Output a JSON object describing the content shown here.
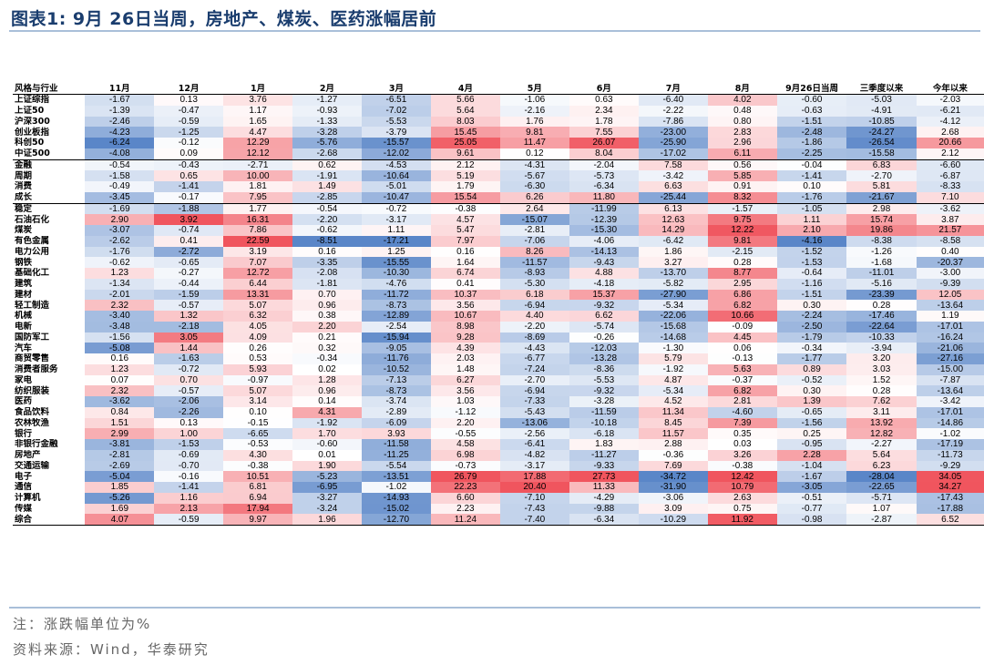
{
  "title": "图表1:  9月 26日当周，房地产、煤炭、医药涨幅居前",
  "headers": [
    "风格与行业",
    "11月",
    "12月",
    "1月",
    "2月",
    "3月",
    "4月",
    "5月",
    "6月",
    "7月",
    "8月",
    "9月26日当周",
    "三季度以来",
    "今年以来"
  ],
  "sections_start": [
    6,
    10
  ],
  "rows": [
    [
      "上证综指",
      "-1.67",
      "0.13",
      "3.76",
      "-1.27",
      "-6.51",
      "5.66",
      "-1.06",
      "0.63",
      "-6.40",
      "4.02",
      "-0.60",
      "-5.03",
      "-2.03"
    ],
    [
      "上证50",
      "-1.39",
      "-0.47",
      "1.17",
      "-0.93",
      "-7.02",
      "5.64",
      "-2.16",
      "2.34",
      "-2.22",
      "0.48",
      "-0.63",
      "-4.91",
      "-6.21"
    ],
    [
      "沪深300",
      "-2.46",
      "-0.59",
      "1.65",
      "-1.33",
      "-5.53",
      "8.03",
      "1.76",
      "1.78",
      "-7.86",
      "0.80",
      "-1.51",
      "-10.85",
      "-4.12"
    ],
    [
      "创业板指",
      "-4.23",
      "-1.25",
      "4.47",
      "-3.28",
      "-3.79",
      "15.45",
      "9.81",
      "7.55",
      "-23.00",
      "2.83",
      "-2.48",
      "-24.27",
      "2.68"
    ],
    [
      "科创50",
      "-6.24",
      "-0.12",
      "12.29",
      "-5.76",
      "-15.57",
      "25.05",
      "11.47",
      "26.07",
      "-25.90",
      "2.96",
      "-1.86",
      "-26.54",
      "20.66"
    ],
    [
      "中证500",
      "-4.08",
      "0.09",
      "12.12",
      "-2.68",
      "-12.02",
      "9.61",
      "0.12",
      "8.04",
      "-17.02",
      "6.11",
      "-2.25",
      "-15.58",
      "2.12"
    ],
    [
      "金融",
      "-0.54",
      "-0.43",
      "-2.71",
      "0.62",
      "-4.53",
      "2.12",
      "-4.31",
      "-2.04",
      "7.58",
      "0.56",
      "-0.04",
      "6.83",
      "-6.60"
    ],
    [
      "周期",
      "-1.58",
      "0.65",
      "10.00",
      "-1.91",
      "-10.64",
      "5.19",
      "-5.67",
      "-5.73",
      "-3.42",
      "5.85",
      "-1.41",
      "-2.70",
      "-6.87"
    ],
    [
      "消费",
      "-0.49",
      "-1.41",
      "1.81",
      "1.49",
      "-5.01",
      "1.79",
      "-6.30",
      "-6.34",
      "6.63",
      "0.91",
      "0.10",
      "5.81",
      "-8.33"
    ],
    [
      "成长",
      "-3.45",
      "-0.17",
      "7.95",
      "-2.85",
      "-10.47",
      "15.54",
      "6.26",
      "11.80",
      "-25.44",
      "8.32",
      "-1.76",
      "-21.67",
      "7.10"
    ],
    [
      "稳定",
      "-1.69",
      "-1.88",
      "1.77",
      "-0.54",
      "-0.72",
      "-0.38",
      "2.64",
      "-11.99",
      "6.13",
      "-1.57",
      "-1.05",
      "2.98",
      "-3.62"
    ],
    [
      "石油石化",
      "2.90",
      "3.92",
      "16.31",
      "-2.20",
      "-3.17",
      "4.57",
      "-15.07",
      "-12.39",
      "12.63",
      "9.75",
      "1.11",
      "15.74",
      "3.87"
    ],
    [
      "煤炭",
      "-3.07",
      "-0.74",
      "7.86",
      "-0.62",
      "1.11",
      "5.47",
      "-2.81",
      "-15.30",
      "14.29",
      "12.22",
      "2.10",
      "19.86",
      "21.57"
    ],
    [
      "有色金属",
      "-2.62",
      "0.41",
      "22.59",
      "-8.51",
      "-17.21",
      "7.97",
      "-7.06",
      "-4.06",
      "-6.42",
      "9.81",
      "-4.16",
      "-8.38",
      "-8.58"
    ],
    [
      "电力公用",
      "-1.76",
      "-2.72",
      "3.19",
      "0.16",
      "1.25",
      "0.16",
      "8.26",
      "-14.13",
      "1.86",
      "-2.15",
      "-1.52",
      "-1.26",
      "0.40"
    ],
    [
      "钢铁",
      "-0.62",
      "-0.65",
      "7.07",
      "-3.35",
      "-15.55",
      "1.64",
      "-11.57",
      "-9.43",
      "3.27",
      "0.28",
      "-1.53",
      "-1.68",
      "-20.37"
    ],
    [
      "基础化工",
      "1.23",
      "-0.27",
      "12.72",
      "-2.08",
      "-10.30",
      "6.74",
      "-8.93",
      "4.88",
      "-13.70",
      "8.77",
      "-0.64",
      "-11.01",
      "-3.00"
    ],
    [
      "建筑",
      "-1.34",
      "-0.44",
      "6.44",
      "-1.81",
      "-4.76",
      "0.41",
      "-5.30",
      "-4.18",
      "-5.82",
      "2.95",
      "-1.16",
      "-5.16",
      "-9.39"
    ],
    [
      "建材",
      "-2.01",
      "-1.59",
      "13.31",
      "0.70",
      "-11.72",
      "10.37",
      "6.18",
      "15.37",
      "-27.90",
      "6.86",
      "-1.51",
      "-23.39",
      "12.05"
    ],
    [
      "轻工制造",
      "2.32",
      "-0.57",
      "5.07",
      "0.96",
      "-8.73",
      "3.56",
      "-6.94",
      "-9.32",
      "-5.34",
      "6.82",
      "0.30",
      "0.28",
      "-13.64"
    ],
    [
      "机械",
      "-3.40",
      "1.32",
      "6.32",
      "0.38",
      "-12.89",
      "10.67",
      "4.40",
      "6.62",
      "-22.06",
      "10.66",
      "-2.24",
      "-17.46",
      "1.19"
    ],
    [
      "电新",
      "-3.48",
      "-2.18",
      "4.05",
      "2.20",
      "-2.54",
      "8.98",
      "-2.20",
      "-5.74",
      "-15.68",
      "-0.09",
      "-2.50",
      "-22.64",
      "-17.01"
    ],
    [
      "国防军工",
      "-1.56",
      "3.05",
      "4.09",
      "0.21",
      "-15.94",
      "9.28",
      "-8.69",
      "-0.26",
      "-14.68",
      "4.45",
      "-1.79",
      "-10.33",
      "-16.24"
    ],
    [
      "汽车",
      "-5.08",
      "1.44",
      "0.26",
      "0.32",
      "-9.05",
      "4.39",
      "-4.43",
      "-12.03",
      "-1.30",
      "0.06",
      "-0.34",
      "-3.94",
      "-21.06"
    ],
    [
      "商贸零售",
      "0.16",
      "-1.63",
      "0.53",
      "-0.34",
      "-11.76",
      "2.03",
      "-6.77",
      "-13.28",
      "5.79",
      "-0.13",
      "-1.77",
      "3.20",
      "-27.16"
    ],
    [
      "消费者服务",
      "1.23",
      "-0.72",
      "5.93",
      "0.02",
      "-10.52",
      "1.48",
      "-7.24",
      "-8.36",
      "-1.92",
      "5.63",
      "0.89",
      "3.03",
      "-15.00"
    ],
    [
      "家电",
      "0.07",
      "0.70",
      "-0.97",
      "1.28",
      "-7.13",
      "6.27",
      "-2.70",
      "-5.53",
      "4.87",
      "-0.37",
      "-0.52",
      "1.52",
      "-7.87"
    ],
    [
      "纺织服装",
      "2.32",
      "-0.57",
      "5.07",
      "0.96",
      "-8.73",
      "3.56",
      "-6.94",
      "-9.32",
      "-5.34",
      "6.82",
      "0.30",
      "0.28",
      "-13.64"
    ],
    [
      "医药",
      "-3.62",
      "-2.06",
      "3.14",
      "0.14",
      "-3.74",
      "1.03",
      "-7.33",
      "-3.28",
      "4.52",
      "2.81",
      "1.39",
      "7.62",
      "-3.42"
    ],
    [
      "食品饮料",
      "0.84",
      "-2.26",
      "0.10",
      "4.31",
      "-2.89",
      "-1.12",
      "-5.43",
      "-11.59",
      "11.34",
      "-4.60",
      "-0.65",
      "3.11",
      "-17.01"
    ],
    [
      "农林牧渔",
      "1.51",
      "0.13",
      "-0.15",
      "-1.92",
      "-6.09",
      "2.20",
      "-13.06",
      "-10.18",
      "8.45",
      "7.39",
      "-1.56",
      "13.92",
      "-14.86"
    ],
    [
      "银行",
      "2.99",
      "1.00",
      "-6.65",
      "1.70",
      "3.93",
      "-0.55",
      "-2.56",
      "-6.18",
      "11.57",
      "0.35",
      "0.25",
      "12.82",
      "-1.02"
    ],
    [
      "非银行金融",
      "-3.81",
      "-1.53",
      "-0.53",
      "-0.60",
      "-11.58",
      "4.58",
      "-6.41",
      "1.83",
      "2.88",
      "0.03",
      "-0.95",
      "-2.27",
      "-17.19"
    ],
    [
      "房地产",
      "-2.81",
      "-0.69",
      "4.30",
      "0.01",
      "-11.25",
      "6.98",
      "-4.82",
      "-11.27",
      "-0.36",
      "3.26",
      "2.28",
      "5.64",
      "-11.73"
    ],
    [
      "交通运输",
      "-2.69",
      "-0.70",
      "-0.38",
      "1.90",
      "-5.54",
      "-0.73",
      "-3.17",
      "-9.33",
      "7.69",
      "-0.38",
      "-1.04",
      "6.23",
      "-9.29"
    ],
    [
      "电子",
      "-5.04",
      "-0.16",
      "10.51",
      "-5.23",
      "-13.51",
      "26.79",
      "17.88",
      "27.73",
      "-34.72",
      "12.42",
      "-1.67",
      "-28.04",
      "34.05"
    ],
    [
      "通信",
      "1.85",
      "-1.41",
      "6.81",
      "-6.95",
      "-1.02",
      "22.23",
      "20.40",
      "11.33",
      "-31.90",
      "10.79",
      "-3.05",
      "-22.65",
      "34.27"
    ],
    [
      "计算机",
      "-5.26",
      "1.16",
      "6.94",
      "-3.27",
      "-14.93",
      "6.60",
      "-7.10",
      "-4.29",
      "-3.06",
      "2.63",
      "-0.51",
      "-5.71",
      "-17.43"
    ],
    [
      "传媒",
      "1.69",
      "2.13",
      "17.94",
      "-3.24",
      "-15.02",
      "2.23",
      "-7.43",
      "-9.88",
      "3.09",
      "0.75",
      "-0.77",
      "1.07",
      "-17.88"
    ],
    [
      "综合",
      "4.07",
      "-0.59",
      "9.97",
      "1.96",
      "-12.70",
      "11.24",
      "-7.40",
      "-6.34",
      "-10.29",
      "11.92",
      "-0.98",
      "-2.87",
      "6.52"
    ]
  ],
  "colors": {
    "positive": "#f0555e",
    "negative": "#5a86c8",
    "title": "#1a3d6e",
    "rule": "#a9bfd9"
  },
  "note": "注：涨跌幅单位为%",
  "source": "资料来源：Wind，华泰研究"
}
